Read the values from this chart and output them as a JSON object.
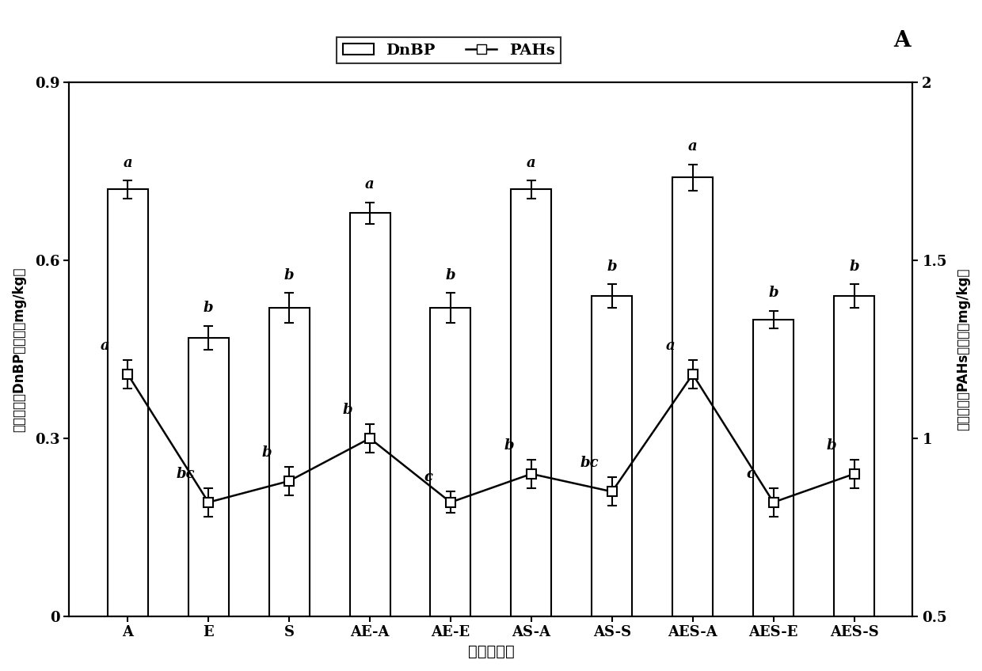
{
  "categories": [
    "A",
    "E",
    "S",
    "AE-A",
    "AE-E",
    "AS-A",
    "AS-S",
    "AES-A",
    "AES-E",
    "AES-S"
  ],
  "dnbp_values": [
    0.72,
    0.47,
    0.52,
    0.68,
    0.52,
    0.72,
    0.54,
    0.74,
    0.5,
    0.54
  ],
  "dnbp_errors": [
    0.015,
    0.02,
    0.025,
    0.018,
    0.025,
    0.015,
    0.02,
    0.022,
    0.015,
    0.02
  ],
  "pahs_values": [
    1.18,
    0.82,
    0.88,
    1.0,
    0.82,
    0.9,
    0.85,
    1.18,
    0.82,
    0.9
  ],
  "pahs_errors": [
    0.04,
    0.04,
    0.04,
    0.04,
    0.03,
    0.04,
    0.04,
    0.04,
    0.04,
    0.04
  ],
  "dnbp_letters": [
    "a",
    "b",
    "b",
    "a",
    "b",
    "a",
    "b",
    "a",
    "b",
    "b"
  ],
  "pahs_letters": [
    "a",
    "bc",
    "b",
    "b",
    "c",
    "b",
    "bc",
    "a",
    "c",
    "b"
  ],
  "left_ylim": [
    0,
    0.9
  ],
  "right_ylim": [
    0.5,
    2.0
  ],
  "left_yticks": [
    0,
    0.3,
    0.6,
    0.9
  ],
  "left_yticklabels": [
    "0",
    "0.3",
    "0.6",
    "0.9"
  ],
  "right_yticks": [
    0.5,
    1.0,
    1.5,
    2.0
  ],
  "right_yticklabels": [
    "0.5",
    "1",
    "1.5",
    "2"
  ],
  "xlabel": "植物处理组",
  "left_ylabel": "植物地上部DnBP的含量（mg/kg）",
  "right_ylabel": "植物地上部PAHs的含量（mg/kg）",
  "legend_dnbp": "DnBP",
  "legend_pahs": "PAHs",
  "panel_label": "A",
  "bar_color": "#ffffff",
  "bar_edgecolor": "#000000",
  "line_color": "#000000",
  "marker_style": "s",
  "marker_facecolor": "#ffffff",
  "marker_edgecolor": "#000000",
  "bar_width": 0.5,
  "figsize": [
    12.4,
    8.48
  ],
  "dpi": 100
}
